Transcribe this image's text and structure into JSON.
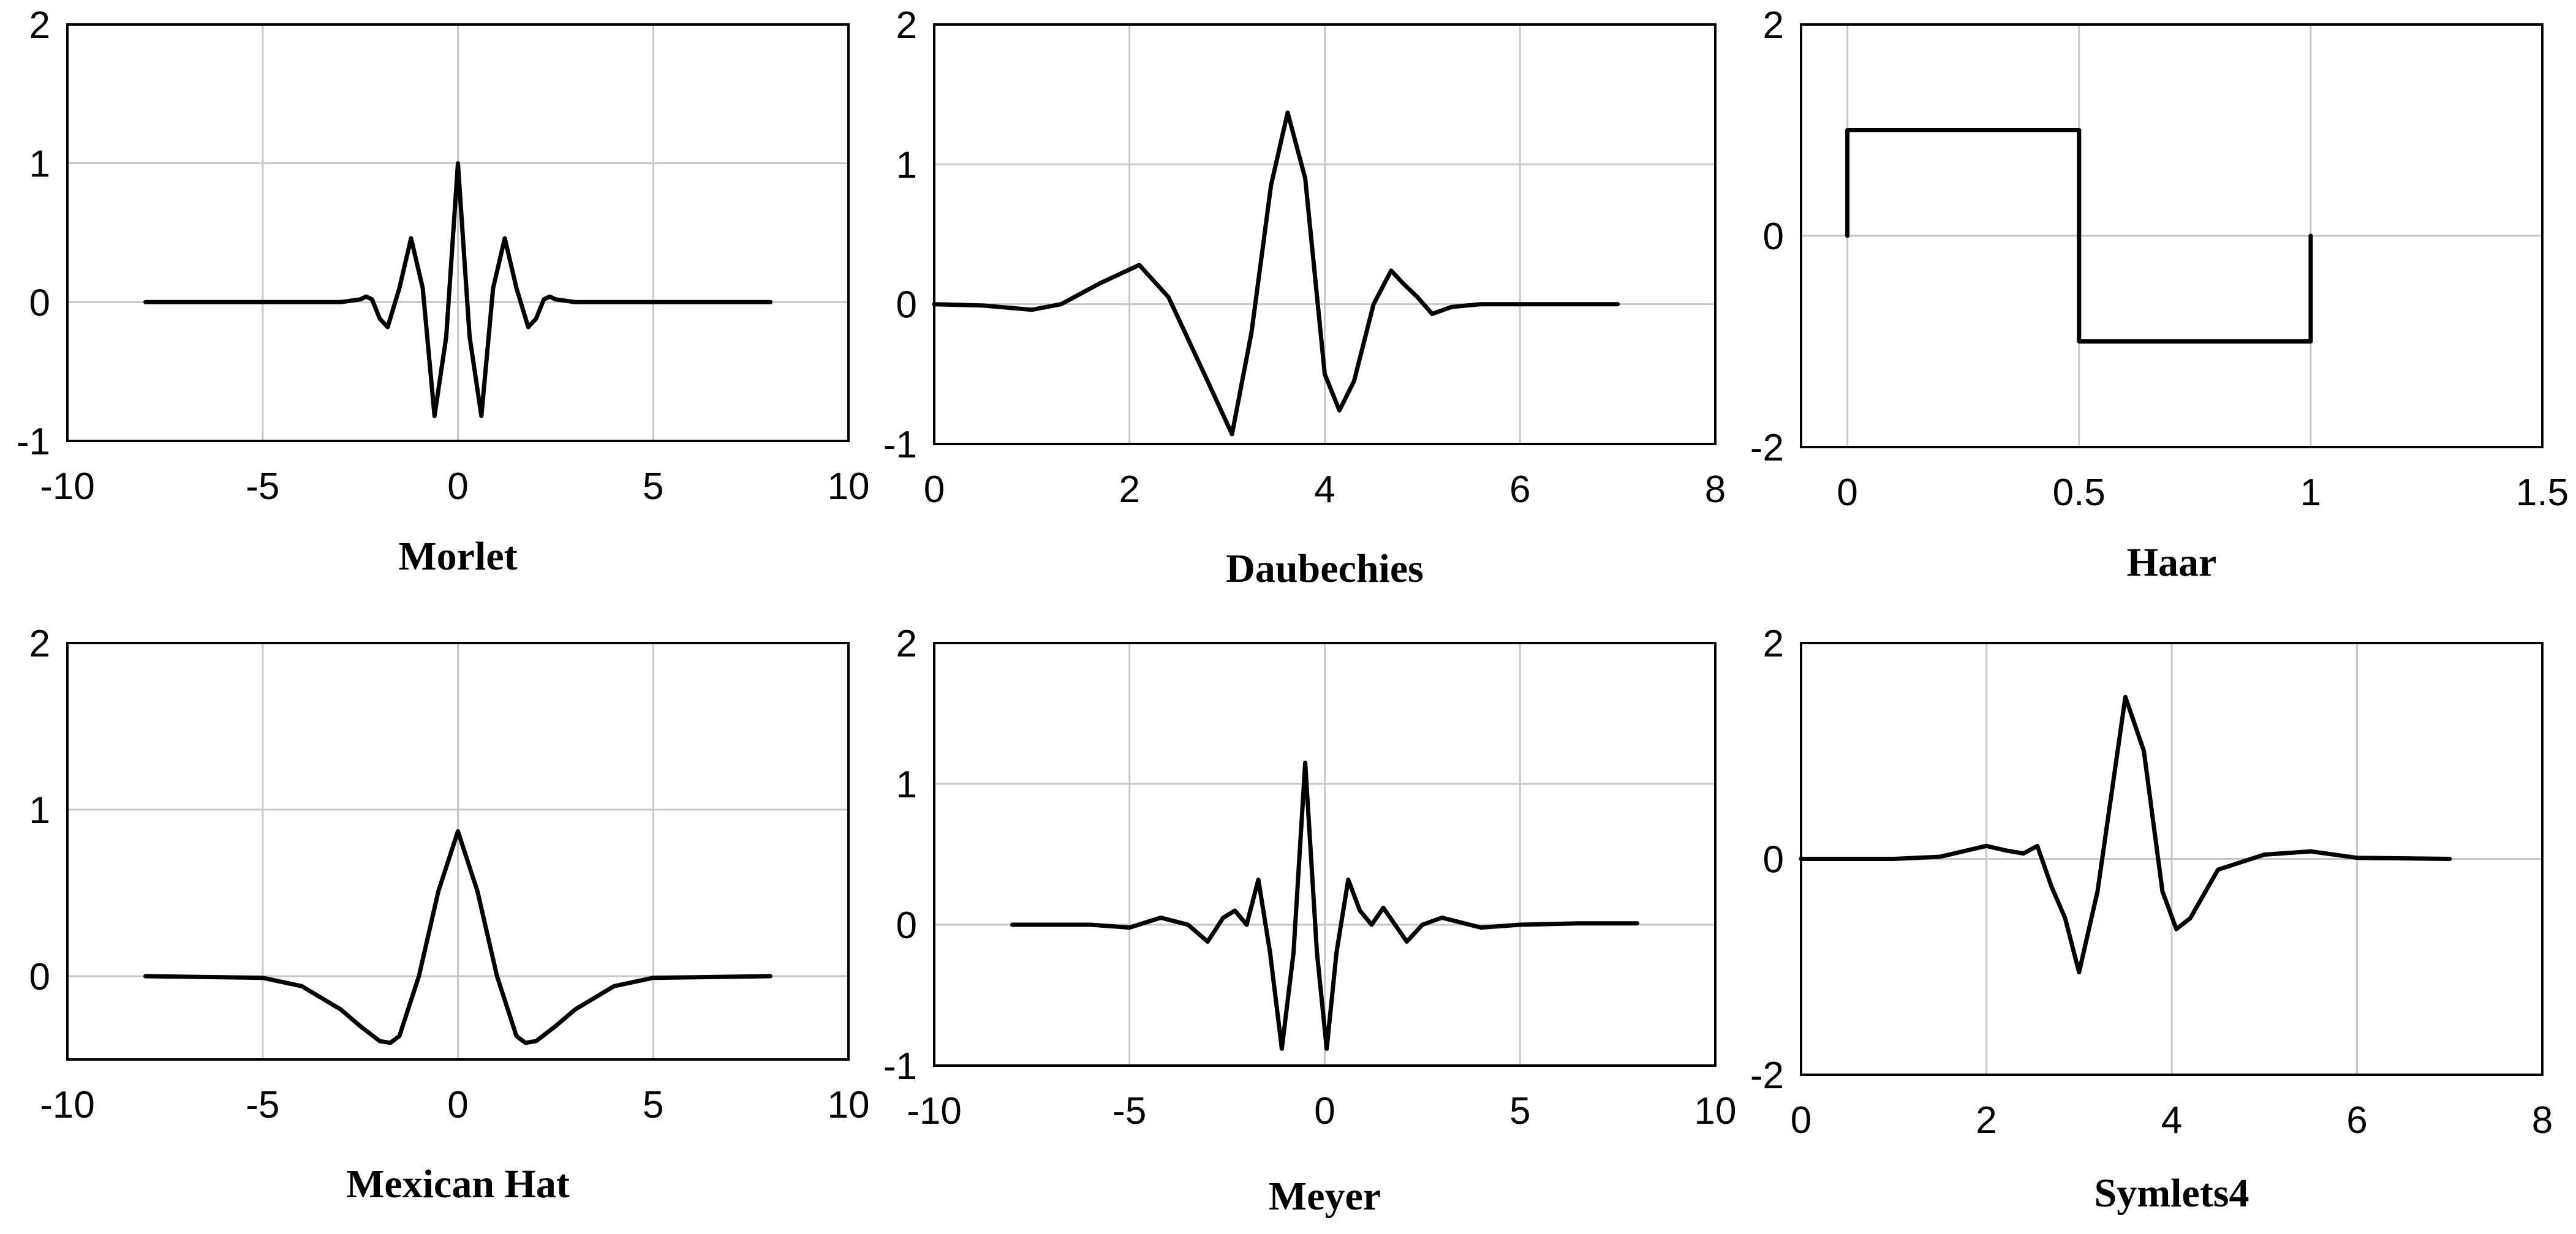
{
  "chart_data": [
    {
      "type": "line",
      "title": "Morlet",
      "xlim": [
        -10,
        10
      ],
      "ylim": [
        -1,
        2
      ],
      "xticks": [
        -10,
        -5,
        0,
        5,
        10
      ],
      "yticks": [
        -1,
        0,
        1,
        2
      ],
      "grid": true,
      "series": [
        {
          "x": [
            -8,
            -3,
            -2.5,
            -2.35,
            -2.2,
            -2.0,
            -1.8,
            -1.5,
            -1.2,
            -0.9,
            -0.6,
            -0.3,
            0,
            0.3,
            0.6,
            0.9,
            1.2,
            1.5,
            1.8,
            2.0,
            2.2,
            2.35,
            2.5,
            3,
            8
          ],
          "y": [
            0,
            0,
            0.02,
            0.04,
            0.02,
            -0.12,
            -0.18,
            0.1,
            0.46,
            0.1,
            -0.82,
            -0.25,
            1.0,
            -0.25,
            -0.82,
            0.1,
            0.46,
            0.1,
            -0.18,
            -0.12,
            0.02,
            0.04,
            0.02,
            0,
            0
          ]
        }
      ]
    },
    {
      "type": "line",
      "title": "Daubechies",
      "xlim": [
        0,
        8
      ],
      "ylim": [
        -1,
        2
      ],
      "xticks": [
        0,
        2,
        4,
        6,
        8
      ],
      "yticks": [
        -1,
        0,
        1,
        2
      ],
      "grid": true,
      "series": [
        {
          "x": [
            0,
            0.5,
            1.0,
            1.3,
            1.7,
            2.1,
            2.4,
            2.8,
            3.05,
            3.25,
            3.45,
            3.62,
            3.8,
            4.0,
            4.15,
            4.3,
            4.5,
            4.68,
            4.8,
            4.95,
            5.1,
            5.3,
            5.6,
            7.0
          ],
          "y": [
            0,
            -0.01,
            -0.04,
            0,
            0.15,
            0.28,
            0.05,
            -0.55,
            -0.93,
            -0.2,
            0.85,
            1.37,
            0.9,
            -0.5,
            -0.76,
            -0.55,
            0.0,
            0.24,
            0.15,
            0.05,
            -0.07,
            -0.02,
            0,
            0
          ]
        }
      ]
    },
    {
      "type": "line",
      "title": "Haar",
      "xlim": [
        -0.1,
        1.5
      ],
      "ylim": [
        -2,
        2
      ],
      "xticks": [
        0,
        0.5,
        1,
        1.5
      ],
      "yticks": [
        -2,
        0,
        2
      ],
      "grid": true,
      "series": [
        {
          "x": [
            0,
            0,
            0.5,
            0.5,
            1,
            1
          ],
          "y": [
            0,
            1,
            1,
            -1,
            -1,
            0
          ]
        }
      ]
    },
    {
      "type": "line",
      "title": "Mexican Hat",
      "xlim": [
        -10,
        10
      ],
      "ylim": [
        -0.5,
        2
      ],
      "xticks": [
        -10,
        -5,
        0,
        5,
        10
      ],
      "yticks": [
        0,
        1,
        2
      ],
      "grid": true,
      "series": [
        {
          "x": [
            -8,
            -5,
            -4,
            -3,
            -2.5,
            -2,
            -1.73,
            -1.5,
            -1,
            -0.5,
            0,
            0.5,
            1,
            1.5,
            1.73,
            2,
            2.5,
            3,
            4,
            5,
            8
          ],
          "y": [
            0,
            -0.01,
            -0.06,
            -0.2,
            -0.3,
            -0.39,
            -0.4,
            -0.36,
            0,
            0.51,
            0.87,
            0.51,
            0,
            -0.36,
            -0.4,
            -0.39,
            -0.3,
            -0.2,
            -0.06,
            -0.01,
            0
          ]
        }
      ]
    },
    {
      "type": "line",
      "title": "Meyer",
      "xlim": [
        -10,
        10
      ],
      "ylim": [
        -1,
        2
      ],
      "xticks": [
        -10,
        -5,
        0,
        5,
        10
      ],
      "yticks": [
        -1,
        0,
        1,
        2
      ],
      "grid": true,
      "series": [
        {
          "x": [
            -8,
            -6,
            -5,
            -4.2,
            -3.5,
            -3.0,
            -2.6,
            -2.3,
            -2.0,
            -1.7,
            -1.4,
            -1.1,
            -0.8,
            -0.5,
            -0.2,
            0.05,
            0.3,
            0.6,
            0.9,
            1.2,
            1.5,
            1.8,
            2.1,
            2.5,
            3.0,
            4.0,
            5.0,
            6.5,
            8.0
          ],
          "y": [
            0,
            0,
            -0.02,
            0.05,
            0.0,
            -0.12,
            0.05,
            0.1,
            0.0,
            0.32,
            -0.2,
            -0.88,
            -0.2,
            1.15,
            -0.2,
            -0.88,
            -0.2,
            0.32,
            0.1,
            0.0,
            0.12,
            0.0,
            -0.12,
            0.0,
            0.05,
            -0.02,
            0,
            0.01,
            0.01
          ]
        }
      ]
    },
    {
      "type": "line",
      "title": "Symlets4",
      "xlim": [
        0,
        8
      ],
      "ylim": [
        -2,
        2
      ],
      "xticks": [
        0,
        2,
        4,
        6,
        8
      ],
      "yticks": [
        -2,
        0,
        2
      ],
      "grid": true,
      "series": [
        {
          "x": [
            0,
            1.0,
            1.5,
            2.0,
            2.2,
            2.4,
            2.55,
            2.7,
            2.85,
            3.0,
            3.2,
            3.5,
            3.7,
            3.9,
            4.05,
            4.2,
            4.5,
            5.0,
            5.5,
            6.0,
            7.0
          ],
          "y": [
            0,
            0,
            0.02,
            0.12,
            0.08,
            0.05,
            0.12,
            -0.25,
            -0.55,
            -1.05,
            -0.3,
            1.5,
            1.0,
            -0.3,
            -0.65,
            -0.55,
            -0.1,
            0.04,
            0.07,
            0.01,
            0
          ]
        }
      ]
    }
  ]
}
